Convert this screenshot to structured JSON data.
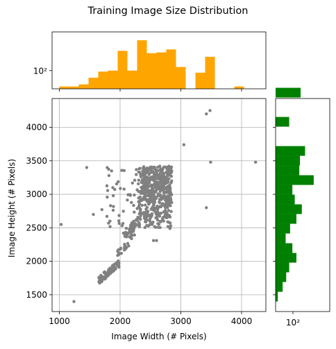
{
  "chart_data": {
    "type": "scatter",
    "title": "Training Image Size Distribution",
    "xlabel": "Image Width (# Pixels)",
    "ylabel": "Image Height (# Pixels)",
    "xlim": [
      880,
      4400
    ],
    "ylim": [
      1250,
      4430
    ],
    "xticks": [
      1000,
      2000,
      3000,
      4000
    ],
    "yticks": [
      1500,
      2000,
      2500,
      3000,
      3500,
      4000
    ],
    "grid": true,
    "point_color": "#808080",
    "top_hist": {
      "color": "#ffa500",
      "scale": "log",
      "ylim": [
        40,
        700
      ],
      "tick_label": "10²",
      "tick_value": 100,
      "bin_start": 1000,
      "bin_width": 160,
      "counts": [
        45,
        45,
        50,
        70,
        95,
        100,
        270,
        100,
        460,
        240,
        250,
        290,
        120,
        0,
        90,
        200,
        0,
        0,
        45
      ]
    },
    "right_hist": {
      "color": "#008000",
      "scale": "log",
      "xlim": [
        40,
        700
      ],
      "tick_label": "10²",
      "tick_value": 100,
      "bin_start": 1400,
      "bin_width": 145,
      "counts": [
        45,
        58,
        70,
        82,
        120,
        97,
        68,
        86,
        120,
        160,
        110,
        97,
        300,
        140,
        145,
        190,
        0,
        0,
        82,
        0,
        0,
        150,
        0
      ]
    },
    "clusters": [
      {
        "x": [
          1650,
          2000
        ],
        "y": [
          1660,
          2030
        ],
        "n": 80
      },
      {
        "x": [
          1950,
          2250
        ],
        "y": [
          2050,
          2450
        ],
        "n": 25
      },
      {
        "x": [
          2050,
          2450
        ],
        "y": [
          2300,
          2800
        ],
        "n": 60
      },
      {
        "x": [
          2300,
          2850
        ],
        "y": [
          2500,
          3420
        ],
        "n": 300
      },
      {
        "x": [
          2350,
          2850
        ],
        "y": [
          2900,
          3420
        ],
        "n": 200
      },
      {
        "x": [
          1700,
          2300
        ],
        "y": [
          2500,
          3420
        ],
        "n": 45
      }
    ],
    "scatter_outliers": [
      {
        "x": 1030,
        "y": 2550
      },
      {
        "x": 1240,
        "y": 1400
      },
      {
        "x": 1450,
        "y": 3400
      },
      {
        "x": 1560,
        "y": 2700
      },
      {
        "x": 1860,
        "y": 3350
      },
      {
        "x": 1810,
        "y": 2570
      },
      {
        "x": 1880,
        "y": 3100
      },
      {
        "x": 3050,
        "y": 3740
      },
      {
        "x": 3420,
        "y": 4200
      },
      {
        "x": 3480,
        "y": 4250
      },
      {
        "x": 3490,
        "y": 3480
      },
      {
        "x": 3420,
        "y": 2800
      },
      {
        "x": 4230,
        "y": 3480
      },
      {
        "x": 2550,
        "y": 2310
      },
      {
        "x": 2600,
        "y": 2310
      },
      {
        "x": 2820,
        "y": 2490
      }
    ]
  }
}
